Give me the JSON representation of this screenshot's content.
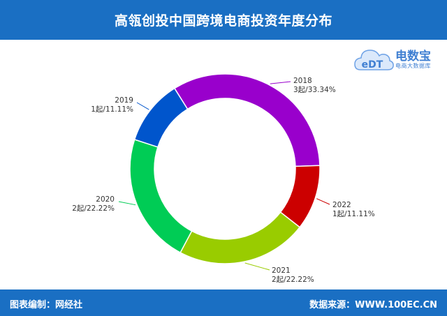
{
  "header": {
    "title": "高瓴创投中国跨境电商投资年度分布"
  },
  "footer": {
    "left": "图表编制：网经社",
    "right": "数据来源：WWW.100EC.CN"
  },
  "logo": {
    "mark_text": "eDT",
    "name": "电数宝",
    "sub": "电商大数据库"
  },
  "colors": {
    "header_bg": "#1a6fc3",
    "s2018": "#9900cc",
    "s2022": "#cc0000",
    "s2021": "#99cc00",
    "s2020": "#00cc55",
    "s2019": "#0055cc"
  },
  "chart_data": {
    "type": "pie",
    "variant": "donut",
    "title": "高瓴创投中国跨境电商投资年度分布",
    "unit": "起",
    "slices": [
      {
        "label": "2018",
        "value": 3,
        "percent": "33.34%",
        "value_text": "3起/33.34%",
        "color": "#9900cc"
      },
      {
        "label": "2022",
        "value": 1,
        "percent": "11.11%",
        "value_text": "1起/11.11%",
        "color": "#cc0000"
      },
      {
        "label": "2021",
        "value": 2,
        "percent": "22.22%",
        "value_text": "2起/22.22%",
        "color": "#99cc00"
      },
      {
        "label": "2020",
        "value": 2,
        "percent": "22.22%",
        "value_text": "2起/22.22%",
        "color": "#00cc55"
      },
      {
        "label": "2019",
        "value": 1,
        "percent": "11.11%",
        "value_text": "1起/11.11%",
        "color": "#0055cc"
      }
    ]
  }
}
